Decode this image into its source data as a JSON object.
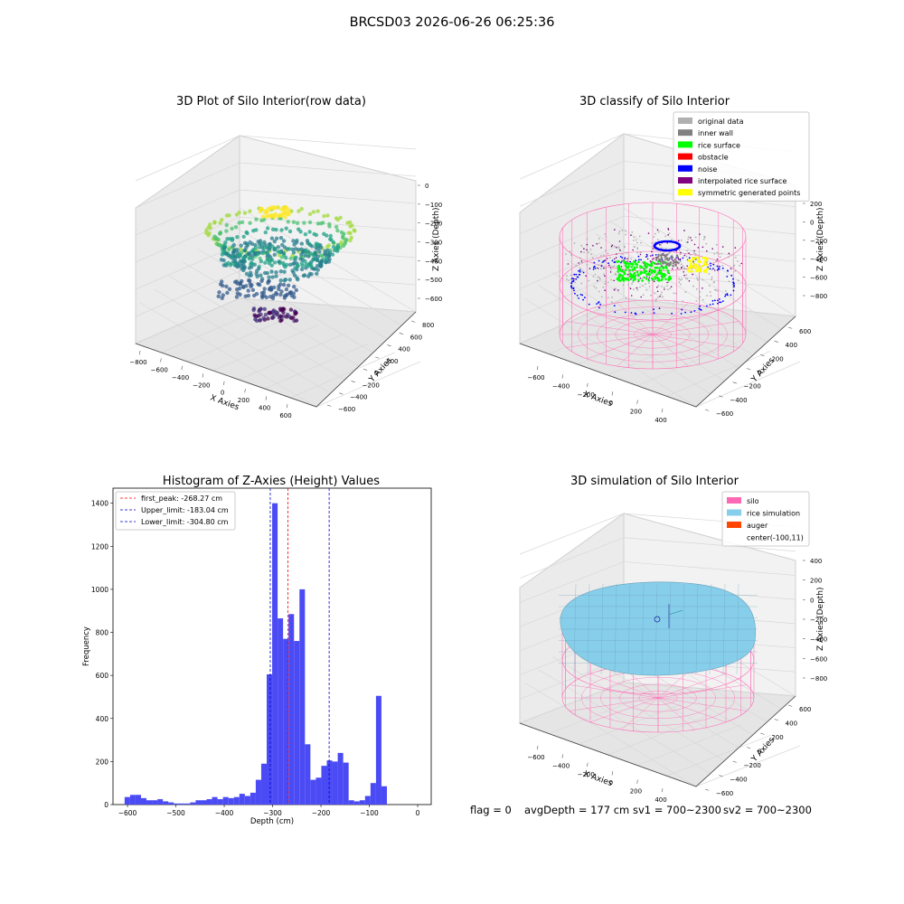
{
  "figure": {
    "title": "BRCSD03 2026-06-26 06:25:36",
    "footer": {
      "flag": "flag = 0",
      "avg_depth": "avgDepth = 177 cm",
      "sv1": "sv1 = 700~2300",
      "sv2": "sv2 = 700~2300"
    }
  },
  "colors": {
    "hist_bar": "#4b4bf5",
    "first_peak": "#ff0000",
    "limit_lines": "#0000cc",
    "silo": "#ff69b4",
    "rice_simulation": "#87ceeb",
    "auger": "#ff4500",
    "original": "#b0b0b0",
    "inner_wall": "#808080",
    "rice_surface": "#00ff00",
    "obstacle": "#ff0000",
    "noise": "#0000ff",
    "interpolated": "#800080",
    "symmetric": "#ffff00"
  },
  "chart_data": [
    {
      "type": "scatter",
      "dims": "3d",
      "title": "3D Plot of Silo Interior(row data)",
      "xlabel": "X Axies",
      "ylabel": "Y Axies",
      "zlabel": "Z Axies (Depth)",
      "x_ticks": [
        "−800",
        "−600",
        "−400",
        "−200",
        "0",
        "200",
        "400",
        "600"
      ],
      "y_ticks": [
        "−600",
        "−400",
        "−200",
        "0",
        "200",
        "400",
        "600",
        "800"
      ],
      "z_ticks": [
        "0",
        "−100",
        "−200",
        "−300",
        "−400",
        "−500",
        "−600"
      ],
      "colormap": "viridis",
      "xlim": [
        -800,
        600
      ],
      "ylim": [
        -600,
        800
      ],
      "zlim": [
        -600,
        0
      ]
    },
    {
      "type": "scatter",
      "dims": "3d",
      "title": "3D classify of Silo Interior",
      "xlabel": "X Axies",
      "ylabel": "Y Axies",
      "zlabel": "Z Axies (Depth)",
      "x_ticks": [
        "−600",
        "−400",
        "−200",
        "0",
        "200",
        "400"
      ],
      "y_ticks": [
        "−600",
        "−400",
        "−200",
        "0",
        "200",
        "400",
        "600"
      ],
      "z_ticks": [
        "200",
        "0",
        "−200",
        "−400",
        "−600",
        "−800"
      ],
      "legend_position": "top-right",
      "legend": [
        {
          "name": "original data",
          "color": "#b0b0b0"
        },
        {
          "name": "inner wall",
          "color": "#808080"
        },
        {
          "name": "rice surface",
          "color": "#00ff00"
        },
        {
          "name": "obstacle",
          "color": "#ff0000"
        },
        {
          "name": "noise",
          "color": "#0000ff"
        },
        {
          "name": "interpolated rice surface",
          "color": "#800080"
        },
        {
          "name": "symmetric generated points",
          "color": "#ffff00"
        }
      ]
    },
    {
      "type": "bar",
      "title": "Histogram of Z-Axies (Height) Values",
      "xlabel": "Depth (cm)",
      "ylabel": "Frequency",
      "xlim": [
        -630,
        28
      ],
      "ylim": [
        0,
        1470
      ],
      "x_ticks": [
        -600,
        -500,
        -400,
        -300,
        -200,
        -100,
        0
      ],
      "x_tick_labels": [
        "−600",
        "−500",
        "−400",
        "−300",
        "−200",
        "−100",
        "0"
      ],
      "y_ticks": [
        0,
        200,
        400,
        600,
        800,
        1000,
        1200,
        1400
      ],
      "bin_start": -606,
      "bin_width": 11.3,
      "values": [
        35,
        45,
        45,
        30,
        20,
        20,
        25,
        15,
        10,
        5,
        5,
        5,
        10,
        20,
        20,
        25,
        35,
        25,
        35,
        30,
        35,
        50,
        40,
        55,
        115,
        190,
        605,
        1400,
        865,
        770,
        885,
        760,
        1000,
        280,
        115,
        125,
        180,
        205,
        200,
        240,
        195,
        20,
        15,
        20,
        40,
        100,
        505,
        85
      ],
      "annotations": [
        {
          "label": "first_peak: -268.27 cm",
          "x": -268.27,
          "style": "red-dashed"
        },
        {
          "label": "Upper_limit: -183.04 cm",
          "x": -183.04,
          "style": "blue-dashed"
        },
        {
          "label": "Lower_limit: -304.80 cm",
          "x": -304.8,
          "style": "blue-dashed"
        }
      ],
      "legend_position": "top-left"
    },
    {
      "type": "surface",
      "dims": "3d",
      "title": "3D simulation of Silo Interior",
      "xlabel": "X Axies",
      "ylabel": "Y Axies",
      "zlabel": "Z Axies (Depth)",
      "x_ticks": [
        "−600",
        "−400",
        "−200",
        "0",
        "200",
        "400"
      ],
      "y_ticks": [
        "−600",
        "−400",
        "−200",
        "0",
        "200",
        "400",
        "600"
      ],
      "z_ticks": [
        "400",
        "200",
        "0",
        "−200",
        "−400",
        "−600",
        "−800"
      ],
      "legend_position": "top-right",
      "legend": [
        {
          "name": "silo",
          "color": "#ff69b4"
        },
        {
          "name": "rice simulation",
          "color": "#87ceeb"
        },
        {
          "name": "auger",
          "color": "#ff4500"
        },
        {
          "name": "center(-100,11)",
          "color": ""
        }
      ]
    }
  ]
}
